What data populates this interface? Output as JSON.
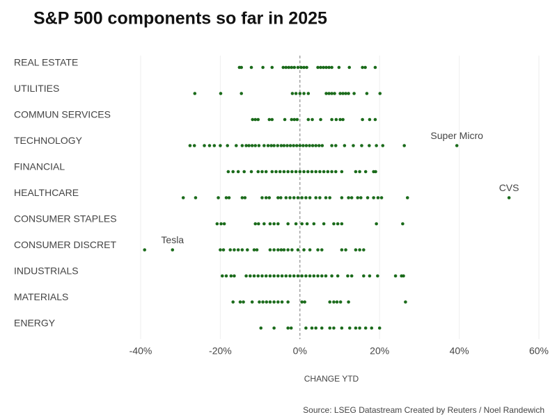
{
  "chart_data": {
    "type": "strip",
    "title": "S&P 500 components so far in 2025",
    "x_label": "CHANGE YTD",
    "source": "Source: LSEG Datastream  Created by Reuters / Noel Randewich",
    "color": "#1b6b1b",
    "grid": true,
    "xlim": [
      -40,
      60
    ],
    "xticks": [
      {
        "value": -40,
        "label": "-40%"
      },
      {
        "value": -20,
        "label": "-20%"
      },
      {
        "value": 0,
        "label": "0%"
      },
      {
        "value": 20,
        "label": "20%"
      },
      {
        "value": 40,
        "label": "40%"
      },
      {
        "value": 60,
        "label": "60%"
      }
    ],
    "categories": [
      "REAL ESTATE",
      "UTILITIES",
      "COMMUN SERVICES",
      "TECHNOLOGY",
      "FINANCIAL",
      "HEALTHCARE",
      "CONSUMER STAPLES",
      "CONSUMER DISCRET",
      "INDUSTRIALS",
      "MATERIALS",
      "ENERGY"
    ],
    "values": [
      [
        -15.2,
        -14.7,
        -12.2,
        -9.3,
        -7,
        -4.2,
        -3.5,
        -2.8,
        -2.1,
        -1.4,
        -0.5,
        0.3,
        1,
        1.7,
        4.5,
        5.2,
        5.9,
        6.6,
        7.3,
        8,
        9.8,
        12.4,
        15.7,
        16.4,
        18.9
      ],
      [
        -26.4,
        -19.9,
        -14.7,
        -1.9,
        -1,
        0,
        1,
        2.1,
        6.6,
        7.3,
        8,
        8.7,
        10.1,
        10.8,
        11.5,
        12.2,
        13.6,
        16.8,
        20.1
      ],
      [
        -11.9,
        -11.2,
        -10.5,
        -7.7,
        -7,
        -3.8,
        -2.1,
        -1.4,
        -0.7,
        2.1,
        3.1,
        5.2,
        8,
        9.1,
        10.1,
        10.8,
        15.7,
        17.5,
        18.9
      ],
      [
        -27.6,
        -26.5,
        -24,
        -22.7,
        -21.5,
        -20,
        -18.2,
        -16,
        -14.5,
        -13.5,
        -12.8,
        -12,
        -11.2,
        -10.3,
        -9,
        -8,
        -7.2,
        -6.5,
        -5.6,
        -4.7,
        -4,
        -3.2,
        -2.4,
        -1.6,
        -0.8,
        0,
        0.8,
        1.6,
        2.4,
        3.2,
        4,
        4.8,
        5.6,
        8,
        9,
        11.2,
        13.4,
        15.5,
        17.4,
        19.2,
        20.8,
        26.2,
        39.4
      ],
      [
        -18,
        -16.8,
        -15.5,
        -14,
        -12.2,
        -10.5,
        -9.5,
        -8.5,
        -7,
        -6,
        -5,
        -4,
        -3,
        -2,
        -1,
        0,
        1,
        2,
        3,
        4,
        5,
        6,
        7,
        8,
        9,
        10.5,
        14,
        15,
        16.5,
        18.5,
        19
      ],
      [
        -29.3,
        -26.2,
        -20.5,
        -18.5,
        -17.8,
        -14.5,
        -13.8,
        -9.5,
        -8.5,
        -7.7,
        -5.5,
        -4.8,
        -3.5,
        -2.5,
        -1.5,
        -0.5,
        0.5,
        1.5,
        2.5,
        4,
        5,
        6.5,
        7.5,
        10.5,
        12.2,
        13,
        14.5,
        15.3,
        17,
        18.5,
        19.6,
        20.5,
        27,
        52.5
      ],
      [
        -20.8,
        -19.8,
        -19,
        -11.2,
        -10.4,
        -9,
        -7.5,
        -6.5,
        -5.5,
        -3,
        -1,
        0.5,
        1.8,
        3.5,
        6,
        8.5,
        9.5,
        10.5,
        19.2,
        25.8
      ],
      [
        -39,
        -32,
        -20,
        -19.2,
        -17.5,
        -16.5,
        -15.5,
        -14.5,
        -13.2,
        -11.5,
        -10.8,
        -7.5,
        -6.5,
        -5.5,
        -4.7,
        -4,
        -3,
        -2,
        -0.5,
        1,
        2.5,
        4.5,
        5.5,
        10.5,
        11.5,
        14,
        15,
        16
      ],
      [
        -19.5,
        -18.5,
        -17.3,
        -16.5,
        -13.5,
        -12.5,
        -11.5,
        -10.5,
        -9.5,
        -8.5,
        -7.5,
        -6.5,
        -5.5,
        -4.5,
        -3.5,
        -2.5,
        -1.5,
        -0.5,
        0.5,
        1.5,
        2.5,
        3.5,
        4.5,
        5.5,
        6.5,
        8,
        9.5,
        12,
        13,
        16,
        17.5,
        19.5,
        24,
        25.5,
        26
      ],
      [
        -16.8,
        -15,
        -14.2,
        -12,
        -10.2,
        -9.3,
        -8.4,
        -7.5,
        -6.5,
        -5.5,
        -4.5,
        -3,
        0.5,
        1.2,
        7.5,
        8.5,
        9.3,
        10.2,
        12.2,
        26.5
      ],
      [
        -9.8,
        -6.5,
        -3,
        -2.2,
        1.5,
        3,
        4,
        5.5,
        7.5,
        8.5,
        10.5,
        12.5,
        14,
        15,
        16.5,
        18,
        20
      ]
    ],
    "annotations": [
      {
        "text": "Super Micro",
        "category": "TECHNOLOGY",
        "x": 39.4
      },
      {
        "text": "CVS",
        "category": "HEALTHCARE",
        "x": 52.5
      },
      {
        "text": "Tesla",
        "category": "CONSUMER DISCRET",
        "x": -32
      }
    ]
  }
}
